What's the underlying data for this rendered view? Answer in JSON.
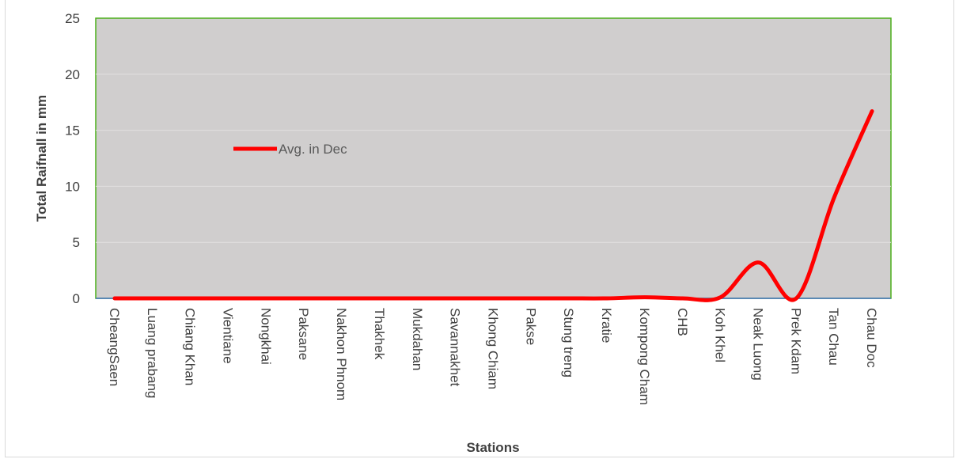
{
  "chart_data": {
    "type": "line",
    "xlabel": "Stations",
    "ylabel": "Total Raifnall in mm",
    "ylim": [
      0,
      25
    ],
    "yticks": [
      0,
      5,
      10,
      15,
      20,
      25
    ],
    "grid": true,
    "smooth": true,
    "legend_position": "left",
    "plot_background": "#d0cece",
    "plot_border_color": "#4caf1a",
    "baseline_color": "#4472c4",
    "categories": [
      "CheangSaen",
      "Luang prabang",
      "Chiang Khan",
      "Vientiane",
      "Nongkhai",
      "Paksane",
      "Nakhon Phnom",
      "Thakhek",
      "Mukdahan",
      "Savannakhet",
      "Khong Chiam",
      "Pakse",
      "Stung treng",
      "Kratie",
      "Kompong Cham",
      "CHB",
      "Koh Khel",
      "Neak Luong",
      "Prek Kdam",
      "Tan Chau",
      "Chau Doc"
    ],
    "series": [
      {
        "name": "Avg. in Dec",
        "color": "#ff0000",
        "values": [
          0,
          0,
          0,
          0,
          0,
          0,
          0,
          0,
          0,
          0,
          0,
          0,
          0,
          0,
          0.1,
          0,
          0.1,
          3.2,
          0,
          9,
          16.7
        ]
      }
    ]
  }
}
